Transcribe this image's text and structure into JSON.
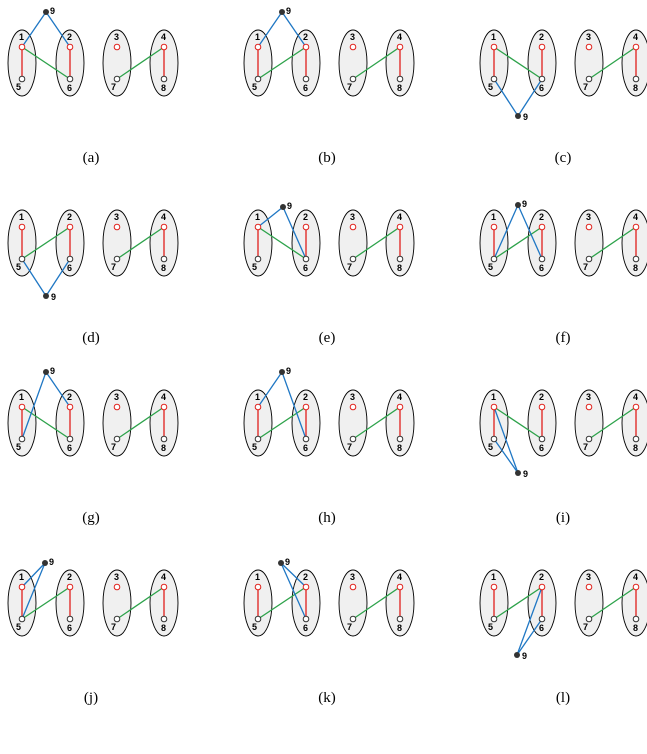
{
  "colors": {
    "red_edge": "#e0201b",
    "green_edge": "#2ca24a",
    "blue_edge": "#1f77c4",
    "red_node": "#e0201b",
    "white_node_stroke": "#333333",
    "extra_node": "#333333"
  },
  "node_labels": [
    "1",
    "2",
    "3",
    "4",
    "5",
    "6",
    "7",
    "8",
    "9"
  ],
  "red_nodes": [
    "1",
    "2",
    "3",
    "4"
  ],
  "red_edges": [
    [
      "1",
      "5"
    ],
    [
      "2",
      "6"
    ],
    [
      "4",
      "8"
    ]
  ],
  "panels": [
    {
      "caption": "(a)",
      "node9": "top-1-2",
      "green": [
        [
          "1",
          "6"
        ],
        [
          "7",
          "4"
        ]
      ],
      "blue": [
        [
          "9",
          "1"
        ],
        [
          "9",
          "2"
        ]
      ]
    },
    {
      "caption": "(b)",
      "node9": "top-1-2",
      "green": [
        [
          "5",
          "2"
        ],
        [
          "7",
          "4"
        ]
      ],
      "blue": [
        [
          "9",
          "1"
        ],
        [
          "9",
          "2"
        ]
      ]
    },
    {
      "caption": "(c)",
      "node9": "bottom-5-6",
      "green": [
        [
          "1",
          "6"
        ],
        [
          "7",
          "4"
        ]
      ],
      "blue": [
        [
          "9",
          "5"
        ],
        [
          "9",
          "6"
        ]
      ]
    },
    {
      "caption": "(d)",
      "node9": "bottom-5-6",
      "green": [
        [
          "5",
          "2"
        ],
        [
          "7",
          "4"
        ]
      ],
      "blue": [
        [
          "9",
          "5"
        ],
        [
          "9",
          "6"
        ]
      ]
    },
    {
      "caption": "(e)",
      "node9": "top-1",
      "green": [
        [
          "1",
          "6"
        ],
        [
          "7",
          "4"
        ]
      ],
      "blue": [
        [
          "9",
          "1"
        ],
        [
          "9",
          "6"
        ]
      ]
    },
    {
      "caption": "(f)",
      "node9": "top-2",
      "green": [
        [
          "5",
          "2"
        ],
        [
          "7",
          "4"
        ]
      ],
      "blue": [
        [
          "9",
          "5"
        ],
        [
          "9",
          "6"
        ]
      ]
    },
    {
      "caption": "(g)",
      "node9": "top-1-2",
      "green": [
        [
          "1",
          "6"
        ],
        [
          "7",
          "4"
        ]
      ],
      "blue": [
        [
          "9",
          "5"
        ],
        [
          "9",
          "2"
        ]
      ]
    },
    {
      "caption": "(h)",
      "node9": "top-1-2",
      "green": [
        [
          "5",
          "2"
        ],
        [
          "7",
          "4"
        ]
      ],
      "blue": [
        [
          "9",
          "1"
        ],
        [
          "9",
          "6"
        ]
      ]
    },
    {
      "caption": "(i)",
      "node9": "bottom-5",
      "green": [
        [
          "1",
          "6"
        ],
        [
          "7",
          "4"
        ]
      ],
      "blue": [
        [
          "9",
          "1"
        ],
        [
          "9",
          "5"
        ]
      ]
    },
    {
      "caption": "(j)",
      "node9": "top-1-near",
      "green": [
        [
          "5",
          "2"
        ],
        [
          "7",
          "4"
        ]
      ],
      "blue": [
        [
          "9",
          "1"
        ],
        [
          "9",
          "5"
        ]
      ]
    },
    {
      "caption": "(k)",
      "node9": "top-2-near",
      "green": [
        [
          "5",
          "2"
        ],
        [
          "7",
          "4"
        ]
      ],
      "blue": [
        [
          "9",
          "2"
        ],
        [
          "9",
          "6"
        ]
      ]
    },
    {
      "caption": "(l)",
      "node9": "bottom-6",
      "green": [
        [
          "5",
          "2"
        ],
        [
          "7",
          "4"
        ]
      ],
      "blue": [
        [
          "9",
          "2"
        ],
        [
          "9",
          "6"
        ]
      ]
    }
  ]
}
